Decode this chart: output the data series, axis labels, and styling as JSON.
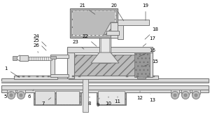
{
  "bg_color": "#ffffff",
  "lc": "#777777",
  "fc_light": "#dddddd",
  "fc_med": "#bbbbbb",
  "fc_dark": "#999999",
  "fc_darker": "#777777",
  "fc_hatch": "#cccccc",
  "labels_data": [
    [
      21,
      118,
      8,
      138,
      22
    ],
    [
      20,
      163,
      8,
      178,
      32
    ],
    [
      19,
      208,
      8,
      208,
      32
    ],
    [
      18,
      222,
      42,
      205,
      58
    ],
    [
      17,
      218,
      55,
      202,
      68
    ],
    [
      16,
      218,
      72,
      196,
      82
    ],
    [
      15,
      222,
      88,
      202,
      96
    ],
    [
      1,
      8,
      98,
      30,
      112
    ],
    [
      22,
      122,
      52,
      140,
      68
    ],
    [
      23,
      108,
      60,
      122,
      72
    ],
    [
      24,
      52,
      52,
      68,
      68
    ],
    [
      25,
      52,
      58,
      68,
      74
    ],
    [
      26,
      52,
      65,
      55,
      78
    ],
    [
      5,
      8,
      138,
      18,
      130
    ],
    [
      6,
      42,
      138,
      48,
      128
    ],
    [
      7,
      62,
      148,
      75,
      138
    ],
    [
      8,
      128,
      148,
      128,
      138
    ],
    [
      9,
      140,
      150,
      142,
      140
    ],
    [
      10,
      155,
      148,
      155,
      138
    ],
    [
      11,
      168,
      145,
      168,
      138
    ],
    [
      12,
      200,
      140,
      200,
      130
    ],
    [
      13,
      218,
      143,
      214,
      132
    ]
  ]
}
